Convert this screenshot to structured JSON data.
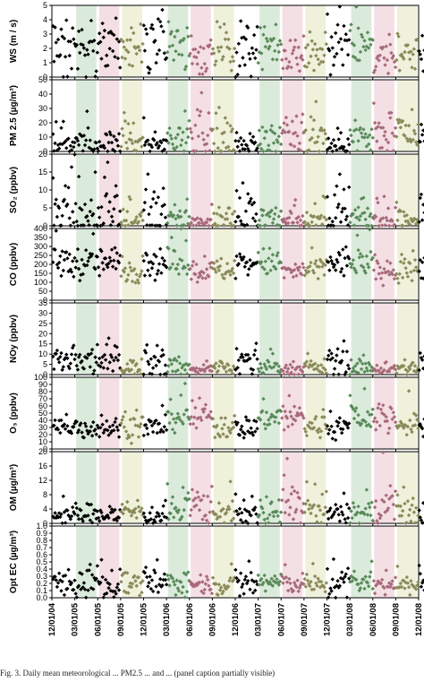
{
  "chart_data": {
    "type": "scatter",
    "x_axis_ticks": [
      "12/01/04",
      "03/01/05",
      "06/01/05",
      "09/01/05",
      "12/01/05",
      "03/01/06",
      "06/01/06",
      "09/01/06",
      "12/01/06",
      "03/01/07",
      "06/01/07",
      "09/01/07",
      "12/01/07",
      "03/01/08",
      "06/01/08",
      "09/01/08",
      "12/01/08"
    ],
    "seasons": {
      "winter": {
        "color": "#000000",
        "periods": [
          [
            0,
            3
          ],
          [
            4,
            5
          ],
          [
            8,
            9
          ],
          [
            12,
            13
          ],
          [
            16,
            16.3
          ]
        ]
      },
      "spring": {
        "color": "#5a8a5a",
        "shade": "#d5e8d5",
        "periods": [
          [
            1,
            2
          ],
          [
            5,
            6
          ],
          [
            9,
            10
          ],
          [
            13,
            14
          ]
        ]
      },
      "summer": {
        "color": "#a86a7a",
        "shade": "#f2d9df",
        "periods": [
          [
            2,
            3
          ],
          [
            6,
            7
          ],
          [
            10,
            11
          ],
          [
            14,
            15
          ]
        ]
      },
      "fall": {
        "color": "#8a8a5a",
        "shade": "#ecefd5",
        "periods": [
          [
            3,
            4
          ],
          [
            7,
            8
          ],
          [
            11,
            12
          ],
          [
            15,
            16
          ]
        ]
      }
    },
    "panels": [
      {
        "key": "ws",
        "ylabel": "WS (m / s)",
        "ylim": [
          0,
          5
        ],
        "ticks": [
          0,
          1,
          2,
          3,
          4,
          5
        ],
        "levels": {
          "winter": 2.2,
          "spring": 2.4,
          "summer": 1.5,
          "fall": 1.9
        },
        "spread": {
          "winter": 1.1,
          "spring": 0.9,
          "summer": 0.6,
          "fall": 0.7
        }
      },
      {
        "key": "pm25",
        "ylabel": "PM 2.5 (µg/m³)",
        "ylim": [
          0,
          50
        ],
        "ticks": [
          0,
          10,
          20,
          30,
          40,
          50
        ],
        "levels": {
          "winter": 6,
          "spring": 9,
          "summer": 14,
          "fall": 10
        },
        "spread": {
          "winter": 4,
          "spring": 6,
          "summer": 9,
          "fall": 7
        }
      },
      {
        "key": "so2",
        "ylabel": "SO₂ (ppbv)",
        "ylim": [
          0,
          20
        ],
        "ticks": [
          0,
          5,
          10,
          15,
          20
        ],
        "levels": {
          "winter": 3.5,
          "spring": 2,
          "summer": 1.5,
          "fall": 2
        },
        "spread": {
          "winter": 4,
          "spring": 2,
          "summer": 1.5,
          "fall": 2
        }
      },
      {
        "key": "co",
        "ylabel": "CO (ppbv)",
        "ylim": [
          0,
          400
        ],
        "ticks": [
          0,
          50,
          100,
          150,
          200,
          250,
          300,
          350,
          400
        ],
        "levels": {
          "winter": 210,
          "spring": 210,
          "summer": 160,
          "fall": 170
        },
        "spread": {
          "winter": 45,
          "spring": 40,
          "summer": 30,
          "fall": 35
        }
      },
      {
        "key": "noy",
        "ylabel": "NOy (ppbv)",
        "ylim": [
          0,
          35
        ],
        "ticks": [
          0,
          5,
          10,
          15,
          20,
          25,
          30,
          35
        ],
        "levels": {
          "winter": 6,
          "spring": 4,
          "summer": 2.5,
          "fall": 3.5
        },
        "spread": {
          "winter": 4,
          "spring": 2,
          "summer": 1.2,
          "fall": 2
        }
      },
      {
        "key": "o3",
        "ylabel": "O₃ (ppbv)",
        "ylim": [
          0,
          100
        ],
        "ticks": [
          0,
          10,
          20,
          30,
          40,
          50,
          60,
          70,
          80,
          90,
          100
        ],
        "levels": {
          "winter": 30,
          "spring": 45,
          "summer": 45,
          "fall": 32
        },
        "spread": {
          "winter": 8,
          "spring": 10,
          "summer": 12,
          "fall": 9
        }
      },
      {
        "key": "om",
        "ylabel": "OM (µg/m³)",
        "ylim": [
          0,
          20
        ],
        "ticks": [
          0,
          4,
          8,
          12,
          16,
          20
        ],
        "levels": {
          "winter": 2.5,
          "spring": 3,
          "summer": 5,
          "fall": 3.5
        },
        "spread": {
          "winter": 1.5,
          "spring": 2,
          "summer": 3,
          "fall": 2
        }
      },
      {
        "key": "ec",
        "ylabel": "Opt EC (µg/m³)",
        "ylim": [
          0,
          1
        ],
        "ticks": [
          0,
          0.1,
          0.2,
          0.3,
          0.4,
          0.5,
          0.6,
          0.7,
          0.8,
          0.9,
          1.0
        ],
        "levels": {
          "winter": 0.2,
          "spring": 0.22,
          "summer": 0.2,
          "fall": 0.18
        },
        "spread": {
          "winter": 0.12,
          "spring": 0.09,
          "summer": 0.07,
          "fall": 0.07
        }
      }
    ]
  },
  "caption": "Fig. 3. Daily mean meteorological ... PM2.5 ... and ... (panel caption partially visible)"
}
